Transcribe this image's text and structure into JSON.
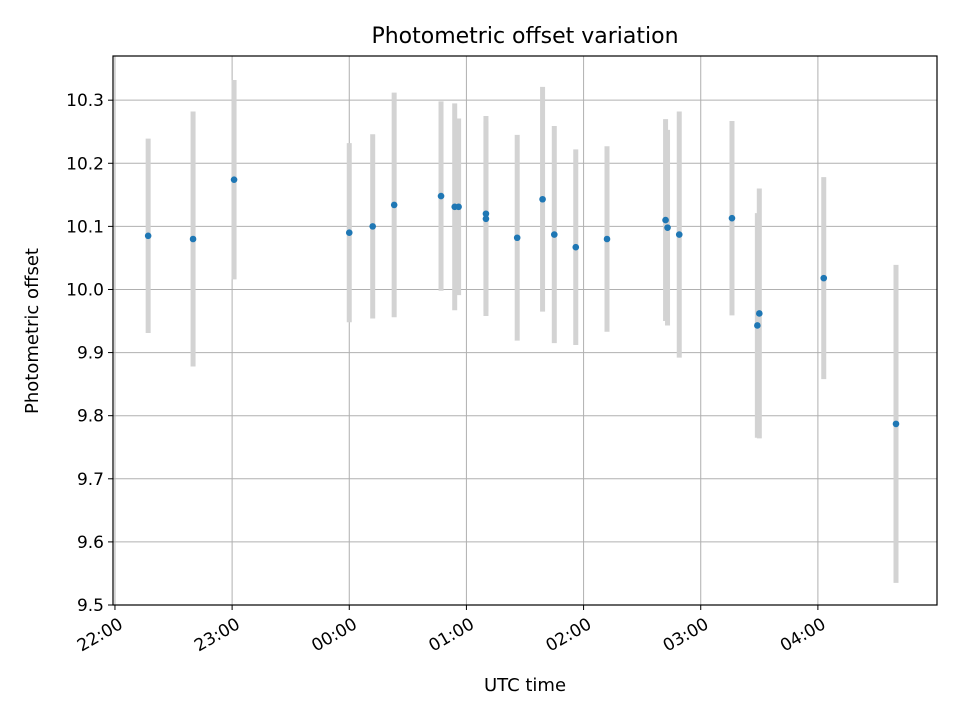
{
  "chart_data": {
    "type": "scatter",
    "title": "Photometric offset variation",
    "xlabel": "UTC time",
    "ylabel": "Photometric offset",
    "x_axis_kind": "time",
    "x_ticks": [
      "22:00",
      "23:00",
      "00:00",
      "01:00",
      "02:00",
      "03:00",
      "04:00"
    ],
    "y_ticks": [
      "9.5",
      "9.6",
      "9.7",
      "9.8",
      "9.9",
      "10.0",
      "10.1",
      "10.2",
      "10.3"
    ],
    "xlim": [
      "21:59",
      "05:01"
    ],
    "ylim": [
      9.5,
      10.37
    ],
    "grid": true,
    "marker_color": "#1f77b4",
    "errorbar_color": "#d3d3d3",
    "series": [
      {
        "points": [
          {
            "x": "22:17",
            "y": 10.085,
            "err": 0.154
          },
          {
            "x": "22:40",
            "y": 10.08,
            "err": 0.202
          },
          {
            "x": "23:01",
            "y": 10.174,
            "err": 0.158
          },
          {
            "x": "00:00",
            "y": 10.09,
            "err": 0.142
          },
          {
            "x": "00:12",
            "y": 10.1,
            "err": 0.146
          },
          {
            "x": "00:23",
            "y": 10.134,
            "err": 0.178
          },
          {
            "x": "00:47",
            "y": 10.148,
            "err": 0.15
          },
          {
            "x": "00:54",
            "y": 10.131,
            "err": 0.164
          },
          {
            "x": "00:56",
            "y": 10.131,
            "err": 0.14
          },
          {
            "x": "01:10",
            "y": 10.12,
            "err": 0.155
          },
          {
            "x": "01:10",
            "y": 10.112,
            "err": 0.154
          },
          {
            "x": "01:26",
            "y": 10.082,
            "err": 0.163
          },
          {
            "x": "01:39",
            "y": 10.143,
            "err": 0.178
          },
          {
            "x": "01:45",
            "y": 10.087,
            "err": 0.172
          },
          {
            "x": "01:56",
            "y": 10.067,
            "err": 0.155
          },
          {
            "x": "02:12",
            "y": 10.08,
            "err": 0.147
          },
          {
            "x": "02:42",
            "y": 10.11,
            "err": 0.16
          },
          {
            "x": "02:43",
            "y": 10.098,
            "err": 0.155
          },
          {
            "x": "02:49",
            "y": 10.087,
            "err": 0.195
          },
          {
            "x": "03:16",
            "y": 10.113,
            "err": 0.154
          },
          {
            "x": "03:29",
            "y": 9.943,
            "err": 0.178
          },
          {
            "x": "03:30",
            "y": 9.962,
            "err": 0.198
          },
          {
            "x": "04:03",
            "y": 10.018,
            "err": 0.16
          },
          {
            "x": "04:40",
            "y": 9.787,
            "err": 0.252
          }
        ]
      }
    ]
  }
}
